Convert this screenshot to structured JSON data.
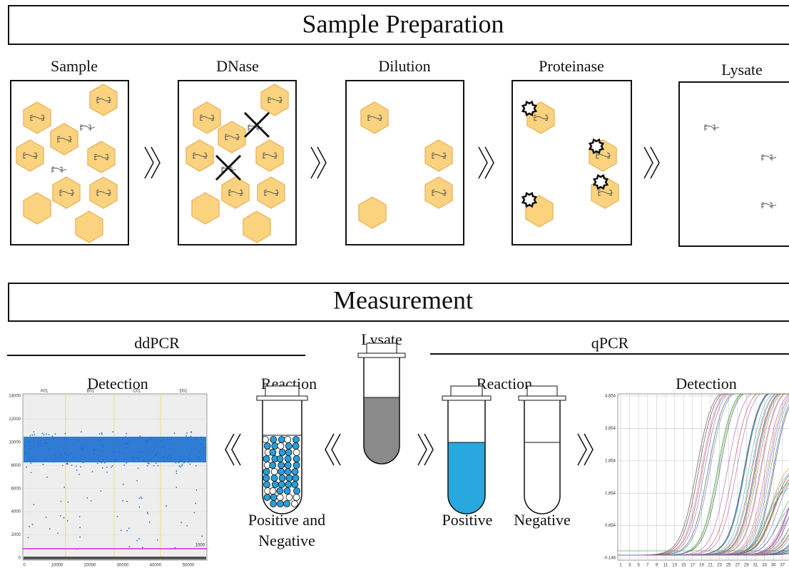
{
  "sample_preparation": {
    "title": "Sample Preparation",
    "steps": [
      "Sample",
      "DNase",
      "Dilution",
      "Proteinase",
      "Lysate"
    ]
  },
  "measurement": {
    "title": "Measurement",
    "input": "Lysate",
    "ddpcr": {
      "title": "ddPCR",
      "reaction": "Reaction",
      "result": [
        "Positive and",
        "Negative"
      ],
      "detection": "Detection",
      "plot": {
        "yticks": [
          14000,
          12000,
          10000,
          8000,
          6000,
          4000,
          2000,
          0
        ],
        "xticks": [
          0,
          10000,
          20000,
          30000,
          40000,
          50000
        ],
        "wells": [
          "A01",
          "B01",
          "C01",
          "D01"
        ],
        "threshold": "1000"
      }
    },
    "qpcr": {
      "title": "qPCR",
      "reaction": "Reaction",
      "results": [
        "Positive",
        "Negative"
      ],
      "detection": "Detection",
      "plot": {
        "yticks": [
          4.854,
          3.854,
          2.854,
          1.854,
          0.854,
          -0.146
        ],
        "xticks": [
          1,
          3,
          5,
          7,
          9,
          11,
          13,
          15,
          17,
          19,
          21,
          23,
          25,
          27,
          29,
          31,
          33,
          35,
          37
        ]
      }
    }
  }
}
